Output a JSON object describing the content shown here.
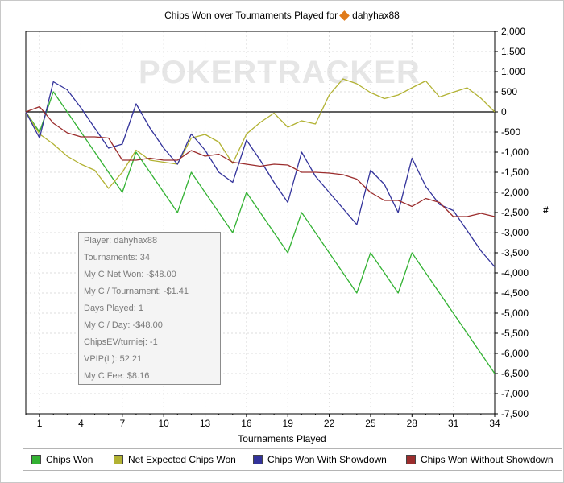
{
  "header": {
    "title_prefix": "Chips Won over Tournaments Played for",
    "player": "dahyhax88"
  },
  "watermark": "POKERTRACKER",
  "tooltip": {
    "lines": [
      "Player: dahyhax88",
      "Tournaments: 34",
      "My C Net Won: -$48.00",
      "My C / Tournament: -$1.41",
      "Days Played: 1",
      "My C / Day: -$48.00",
      "ChipsEV/turniej: -1",
      "VPIP(L): 52.21",
      "My C Fee: $8.16"
    ]
  },
  "chart_data": {
    "type": "line",
    "title": "Chips Won over Tournaments Played for dahyhax88",
    "xlabel": "Tournaments Played",
    "ylabel": "#",
    "xlim": [
      0,
      34
    ],
    "ylim": [
      -7500,
      2000
    ],
    "x_ticks": [
      1,
      4,
      7,
      10,
      13,
      16,
      19,
      22,
      25,
      28,
      31,
      34
    ],
    "y_ticks": [
      2000,
      1500,
      1000,
      500,
      0,
      -500,
      -1000,
      -1500,
      -2000,
      -2500,
      -3000,
      -3500,
      -4000,
      -4500,
      -5000,
      -5500,
      -6000,
      -6500,
      -7000,
      -7500
    ],
    "y_tick_labels": [
      "2,000",
      "1,500",
      "1,000",
      "500",
      "0",
      "-500",
      "-1,000",
      "-1,500",
      "-2,000",
      "-2,500",
      "-3,000",
      "-3,500",
      "-4,000",
      "-4,500",
      "-5,000",
      "-5,500",
      "-6,000",
      "-6,500",
      "-7,000",
      "-7,500"
    ],
    "grid": true,
    "legend_position": "bottom",
    "x": [
      0,
      1,
      2,
      3,
      4,
      5,
      6,
      7,
      8,
      9,
      10,
      11,
      12,
      13,
      14,
      15,
      16,
      17,
      18,
      19,
      20,
      21,
      22,
      23,
      24,
      25,
      26,
      27,
      28,
      29,
      30,
      31,
      32,
      33,
      34
    ],
    "series": [
      {
        "name": "Chips Won",
        "color": "#33b233",
        "values": [
          0,
          -500,
          500,
          0,
          -500,
          -1000,
          -1500,
          -2000,
          -1000,
          -1500,
          -2000,
          -2500,
          -1500,
          -2000,
          -2500,
          -3000,
          -2000,
          -2500,
          -3000,
          -3500,
          -2500,
          -3000,
          -3500,
          -4000,
          -4500,
          -3500,
          -4000,
          -4500,
          -3500,
          -4000,
          -4500,
          -5000,
          -5500,
          -6000,
          -6500
        ]
      },
      {
        "name": "Net Expected Chips Won",
        "color": "#b2b233",
        "values": [
          0,
          -550,
          -800,
          -1100,
          -1300,
          -1450,
          -1900,
          -1500,
          -950,
          -1200,
          -1250,
          -1300,
          -650,
          -560,
          -750,
          -1280,
          -550,
          -260,
          -30,
          -380,
          -220,
          -300,
          420,
          820,
          700,
          480,
          330,
          420,
          600,
          770,
          370,
          490,
          600,
          340,
          0
        ]
      },
      {
        "name": "Chips Won With Showdown",
        "color": "#33339b",
        "values": [
          0,
          -650,
          750,
          550,
          100,
          -400,
          -900,
          -800,
          200,
          -400,
          -900,
          -1300,
          -550,
          -950,
          -1500,
          -1750,
          -700,
          -1200,
          -1750,
          -2250,
          -1000,
          -1600,
          -2000,
          -2400,
          -2800,
          -1450,
          -1800,
          -2500,
          -1150,
          -1850,
          -2300,
          -2450,
          -2950,
          -3450,
          -3850
        ]
      },
      {
        "name": "Chips Won Without Showdown",
        "color": "#9b2d2d",
        "values": [
          0,
          130,
          -280,
          -520,
          -620,
          -620,
          -650,
          -1200,
          -1200,
          -1150,
          -1200,
          -1200,
          -960,
          -1100,
          -1050,
          -1250,
          -1300,
          -1350,
          -1300,
          -1320,
          -1500,
          -1500,
          -1520,
          -1560,
          -1670,
          -2000,
          -2200,
          -2200,
          -2350,
          -2150,
          -2250,
          -2600,
          -2600,
          -2520,
          -2600
        ]
      }
    ]
  }
}
